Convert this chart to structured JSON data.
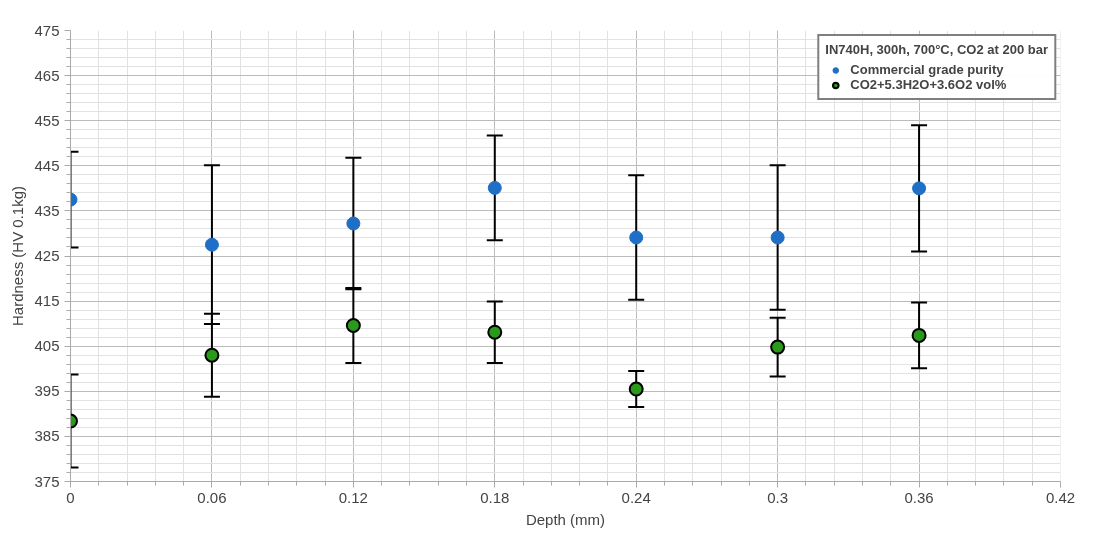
{
  "chart_data": {
    "type": "scatter",
    "xlabel": "Depth (mm)",
    "ylabel": "Hardness (HV 0.1kg)",
    "legend_title": "IN740H, 300h, 700°C, CO2 at 200 bar",
    "x": [
      0,
      0.06,
      0.12,
      0.18,
      0.24,
      0.3,
      0.36
    ],
    "series": [
      {
        "name": "Commercial grade purity",
        "color": "#1f6fc6",
        "values": [
          437.5,
          427.5,
          432.2,
          440.1,
          429.1,
          429.1,
          440.0
        ],
        "errors": [
          10.6,
          17.6,
          14.6,
          11.6,
          13.8,
          16.0,
          14.0
        ]
      },
      {
        "name": "CO2+5.3H2O+3.6O2 vol%",
        "color": "#2a9a1a",
        "values": [
          388.4,
          403.0,
          409.6,
          408.1,
          395.5,
          404.8,
          407.4
        ],
        "errors": [
          10.3,
          9.2,
          8.3,
          6.8,
          4.0,
          6.5,
          7.3
        ]
      }
    ],
    "xlim": [
      0,
      0.42
    ],
    "xticks": [
      0,
      0.06,
      0.12,
      0.18,
      0.24,
      0.3,
      0.36,
      0.42
    ],
    "ylim": [
      375,
      475
    ],
    "yticks": [
      375,
      385,
      395,
      405,
      415,
      425,
      435,
      445,
      455,
      465,
      475
    ],
    "grid": true,
    "legend": "top right",
    "marker": "circle"
  }
}
